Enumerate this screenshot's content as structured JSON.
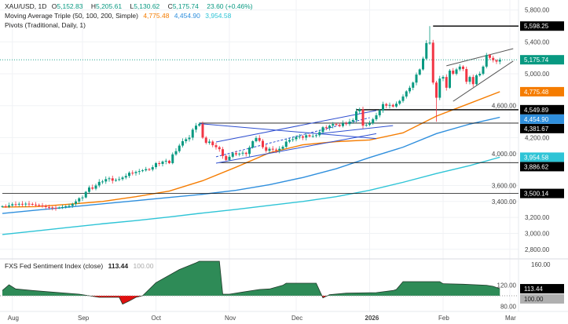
{
  "legend": {
    "symbol": "XAU/USD, 1D",
    "open_label": "O",
    "open": "5,152.83",
    "high_label": "H",
    "high": "5,205.61",
    "low_label": "L",
    "low": "5,130.62",
    "close_label": "C",
    "close": "5,175.74",
    "change": "23.60 (+0.46%)",
    "ma_title": "Moving Average Triple (50, 100, 200, Simple)",
    "ma50": "4,775.48",
    "ma100": "4,454.90",
    "ma200": "3,954.58",
    "pivots_title": "Pivots (Traditional, Daily, 1)",
    "indicator_title": "FXS Fed Sentiment Index (close)",
    "indicator_value": "113.44",
    "indicator_baseline": "100.00"
  },
  "colors": {
    "up": "#089981",
    "down": "#f23645",
    "ma50": "#f57c00",
    "ma100": "#2f8fdd",
    "ma200": "#2ec4d6",
    "pivot": "#111111",
    "trend": "#2f4fd0",
    "wedge": "#555555",
    "ind_pos": "#2e8b57",
    "ind_neg": "#e01010"
  },
  "chart_data": [
    {
      "type": "candlestick",
      "title": "XAU/USD, 1D",
      "ylim": [
        2700,
        5900
      ],
      "y_scale": "linear",
      "grid": true,
      "x_ticks": [
        {
          "label": "Aug",
          "bar": 3
        },
        {
          "label": "Sep",
          "bar": 24
        },
        {
          "label": "Oct",
          "bar": 46
        },
        {
          "label": "Nov",
          "bar": 68
        },
        {
          "label": "Dec",
          "bar": 88
        },
        {
          "label": "2026",
          "bar": 110
        },
        {
          "label": "Feb",
          "bar": 132
        },
        {
          "label": "Mar",
          "bar": 152
        }
      ],
      "y_ticks": [
        "5,800.00",
        "5,400.00",
        "5,000.00",
        "4,600.00",
        "4,200.00",
        "4,000.00",
        "3,600.00",
        "3,400.00",
        "3,200.00",
        "3,000.00",
        "2,800.00"
      ],
      "y_tick_values": [
        5800,
        5400,
        5000,
        4600,
        4200,
        4000,
        3600,
        3400,
        3200,
        3000,
        2800
      ],
      "closes": [
        3340,
        3335,
        3350,
        3365,
        3360,
        3370,
        3365,
        3372,
        3368,
        3360,
        3355,
        3350,
        3345,
        3330,
        3325,
        3320,
        3318,
        3322,
        3330,
        3340,
        3345,
        3370,
        3400,
        3440,
        3450,
        3520,
        3575,
        3560,
        3600,
        3645,
        3650,
        3680,
        3690,
        3660,
        3670,
        3680,
        3700,
        3720,
        3760,
        3755,
        3770,
        3780,
        3790,
        3805,
        3800,
        3830,
        3880,
        3870,
        3900,
        3910,
        3880,
        3990,
        4030,
        4100,
        4155,
        4180,
        4200,
        4300,
        4350,
        4370,
        4200,
        4135,
        4150,
        4105,
        4080,
        4055,
        3970,
        3920,
        3960,
        4005,
        3990,
        4000,
        4010,
        3995,
        4075,
        4155,
        4195,
        4160,
        4080,
        4035,
        4060,
        4050,
        4040,
        4060,
        4085,
        4150,
        4170,
        4180,
        4210,
        4215,
        4200,
        4230,
        4215,
        4220,
        4230,
        4270,
        4330,
        4320,
        4350,
        4370,
        4360,
        4345,
        4380,
        4370,
        4400,
        4420,
        4530,
        4555,
        4350,
        4360,
        4380,
        4430,
        4480,
        4540,
        4620,
        4600,
        4610,
        4590,
        4625,
        4660,
        4715,
        4780,
        4825,
        4890,
        4990,
        5055,
        5190,
        5385,
        5390,
        4890,
        4700,
        4940,
        4960,
        4825,
        5040,
        5000,
        5055,
        5090,
        5060,
        4900,
        4960,
        4870,
        4980,
        5000,
        5090,
        5235,
        5200,
        5170,
        5152.83,
        5175.74
      ],
      "period_high": 5598.25,
      "period_low_after_peak": 4400,
      "last_price": 5175.74,
      "last_price_label": "5,175.74",
      "moving_averages": [
        {
          "name": "MA 50",
          "label": "4,775.48",
          "last": 4775.48,
          "sample_every_bars": 10,
          "values": [
            3330,
            3335,
            3365,
            3400,
            3460,
            3530,
            3660,
            3830,
            4010,
            4110,
            4150,
            4170,
            4260,
            4470,
            4630,
            4775.48
          ]
        },
        {
          "name": "MA 100",
          "label": "4,454.90",
          "last": 4454.9,
          "sample_every_bars": 10,
          "values": [
            3250,
            3290,
            3330,
            3370,
            3410,
            3450,
            3490,
            3540,
            3610,
            3700,
            3810,
            3950,
            4080,
            4250,
            4370,
            4454.9
          ]
        },
        {
          "name": "MA 200",
          "label": "3,954.58",
          "last": 3954.58,
          "sample_every_bars": 10,
          "values": [
            2985,
            3030,
            3075,
            3120,
            3160,
            3205,
            3255,
            3300,
            3350,
            3400,
            3460,
            3540,
            3640,
            3750,
            3850,
            3954.58
          ]
        }
      ],
      "pivots": [
        {
          "label": "5,598.25",
          "value": 5598.25,
          "from_bar": 129
        },
        {
          "label": "4,549.89",
          "value": 4549.89,
          "from_bar": 106
        },
        {
          "label": "4,381.67",
          "value": 4381.67,
          "from_bar": 59
        },
        {
          "label": "3,886.62",
          "value": 3886.62,
          "from_bar": 65
        },
        {
          "label": "3,500.14",
          "value": 3500.14,
          "from_bar": 0
        }
      ],
      "trendlines": [
        {
          "kind": "trend",
          "from": [
            59,
            4375
          ],
          "to": [
            112,
            4188
          ]
        },
        {
          "kind": "trend",
          "from": [
            64,
            4145
          ],
          "to": [
            112,
            4540
          ]
        },
        {
          "kind": "trend",
          "from": [
            64,
            3880
          ],
          "to": [
            112,
            4250
          ]
        },
        {
          "kind": "trend-dashed",
          "from": [
            64,
            3960
          ],
          "to": [
            110,
            4450
          ]
        },
        {
          "kind": "trend",
          "from": [
            95,
            4250
          ],
          "to": [
            117,
            4350
          ]
        },
        {
          "kind": "wedge",
          "from": [
            133,
            5100
          ],
          "to": [
            153,
            5315
          ]
        },
        {
          "kind": "wedge",
          "from": [
            135,
            4655
          ],
          "to": [
            153,
            5160
          ]
        }
      ]
    },
    {
      "type": "area",
      "title": "FXS Fed Sentiment Index (close)",
      "baseline": 100,
      "ylim": [
        75,
        170
      ],
      "y_ticks": [
        "160.00",
        "120.00",
        "80.00"
      ],
      "y_tick_values": [
        160,
        120,
        80
      ],
      "last_label": "113.44",
      "baseline_label": "100.00",
      "points": [
        [
          0,
          110
        ],
        [
          2,
          121
        ],
        [
          4,
          113
        ],
        [
          9,
          110
        ],
        [
          13,
          108
        ],
        [
          23,
          103
        ],
        [
          26,
          100
        ],
        [
          29,
          97
        ],
        [
          35,
          97
        ],
        [
          36,
          84
        ],
        [
          38,
          90
        ],
        [
          40,
          97
        ],
        [
          42,
          100
        ],
        [
          46,
          125
        ],
        [
          53,
          150
        ],
        [
          58,
          163
        ],
        [
          59,
          166
        ],
        [
          65,
          166
        ],
        [
          66,
          103
        ],
        [
          68,
          103
        ],
        [
          72,
          107
        ],
        [
          77,
          112
        ],
        [
          80,
          113
        ],
        [
          84,
          120
        ],
        [
          85,
          124
        ],
        [
          94,
          124
        ],
        [
          96,
          96
        ],
        [
          98,
          102
        ],
        [
          103,
          105
        ],
        [
          112,
          106
        ],
        [
          117,
          110
        ],
        [
          118,
          112
        ],
        [
          120,
          127
        ],
        [
          131,
          127
        ],
        [
          132,
          123
        ],
        [
          138,
          122
        ],
        [
          145,
          120
        ],
        [
          147,
          118
        ],
        [
          149,
          113.44
        ]
      ]
    }
  ]
}
